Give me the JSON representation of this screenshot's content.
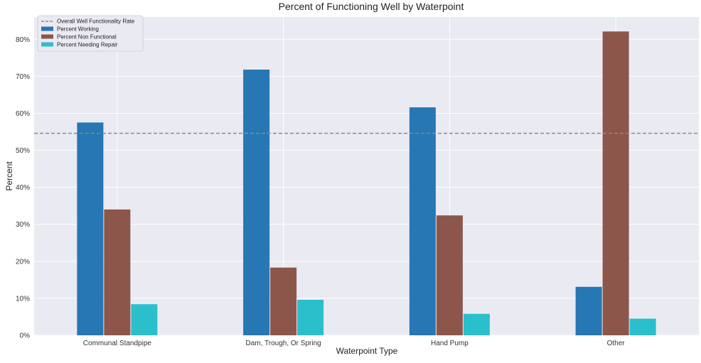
{
  "chart_data": {
    "type": "bar",
    "title": "Percent of Functioning Well by Waterpoint",
    "xlabel": "Waterpoint Type",
    "ylabel": "Percent",
    "categories": [
      "Communal Standpipe",
      "Dam, Trough, Or Spring",
      "Hand Pump",
      "Other"
    ],
    "series": [
      {
        "name": "Percent Working",
        "color": "#2677b4",
        "values": [
          57.5,
          71.8,
          61.6,
          13.1
        ]
      },
      {
        "name": "Percent Non Functional",
        "color": "#8c564b",
        "values": [
          34.0,
          18.3,
          32.4,
          82.1
        ]
      },
      {
        "name": "Percent Needing Repair",
        "color": "#2bbfcc",
        "values": [
          8.4,
          9.6,
          5.8,
          4.5
        ]
      }
    ],
    "reference_line": {
      "name": "Overall Well Functionality Rate",
      "value": 54.6,
      "color": "#8a8a8a"
    },
    "yticks": [
      "0%",
      "10%",
      "20%",
      "30%",
      "40%",
      "50%",
      "60%",
      "70%",
      "80%"
    ],
    "ylim": [
      0,
      86
    ],
    "grid": true,
    "legend_position": "top-left",
    "background_color": "#eaeaf2"
  }
}
